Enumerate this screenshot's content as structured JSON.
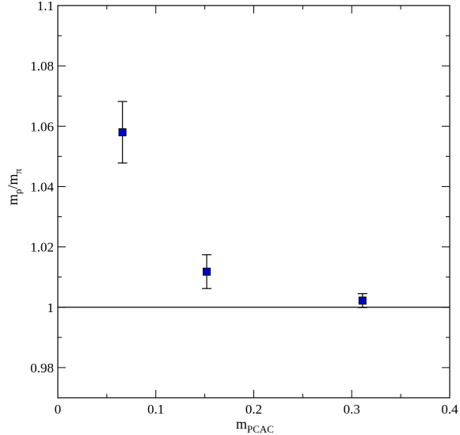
{
  "chart_data": {
    "type": "scatter",
    "title": "",
    "xlabel": {
      "main": "m",
      "sub": "PCAC"
    },
    "ylabel": {
      "main": "m",
      "sub1": "ρ",
      "sep": "/m",
      "sub2": "π"
    },
    "xlim": [
      0,
      0.4
    ],
    "ylim": [
      0.97,
      1.1
    ],
    "xticks": [
      0,
      0.1,
      0.2,
      0.3,
      0.4
    ],
    "xtick_labels": [
      "0",
      "0.1",
      "0.2",
      "0.3",
      "0.4"
    ],
    "yticks": [
      0.98,
      1.0,
      1.02,
      1.04,
      1.06,
      1.08,
      1.1
    ],
    "ytick_labels": [
      "0.98",
      "1",
      "1.02",
      "1.04",
      "1.06",
      "1.08",
      "1.1"
    ],
    "grid": false,
    "reference_line": {
      "y": 1.0
    },
    "series": [
      {
        "marker": "square",
        "color": "#0000cc",
        "points": [
          {
            "x": 0.066,
            "y": 1.058,
            "err": 0.0102
          },
          {
            "x": 0.152,
            "y": 1.0118,
            "err": 0.0056
          },
          {
            "x": 0.311,
            "y": 1.0022,
            "err": 0.0023
          }
        ]
      }
    ]
  }
}
